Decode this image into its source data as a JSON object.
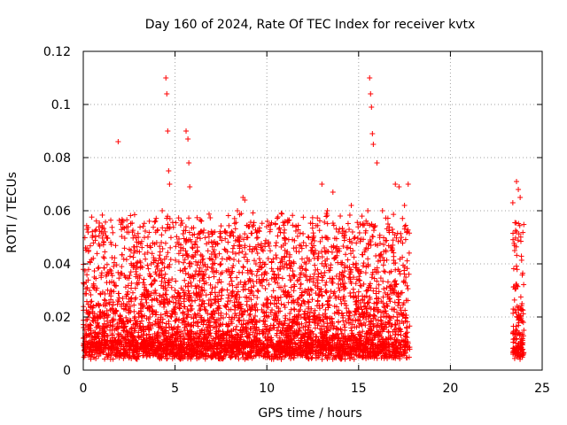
{
  "chart_data": {
    "type": "scatter",
    "title": "Day 160 of 2024, Rate Of TEC Index for receiver kvtx",
    "xlabel": "GPS time / hours",
    "ylabel": "ROTI / TECUs",
    "xlim": [
      0,
      25
    ],
    "ylim": [
      0,
      0.12
    ],
    "x_ticks": [
      0,
      5,
      10,
      15,
      20,
      25
    ],
    "x_tick_labels": [
      "0",
      "5",
      "10",
      "15",
      "20",
      "25"
    ],
    "y_ticks": [
      0,
      0.02,
      0.04,
      0.06,
      0.08,
      0.1,
      0.12
    ],
    "y_tick_labels": [
      "0",
      "0.02",
      "0.04",
      "0.06",
      "0.08",
      "0.1",
      "0.12"
    ],
    "grid": true,
    "marker": "+",
    "color": "#ff0000",
    "coverage_hours": [
      [
        0.0,
        17.8
      ],
      [
        23.4,
        24.0
      ]
    ],
    "series": [
      {
        "x": [
          0.0,
          0.3,
          0.6,
          1.0,
          1.1,
          1.5,
          1.9,
          2.2,
          2.6,
          3.0,
          3.3,
          3.7,
          4.0,
          4.3,
          4.5,
          4.55,
          4.6,
          4.65,
          4.7,
          4.8,
          5.0,
          5.3,
          5.6,
          5.7,
          5.75,
          5.8,
          5.9,
          6.2,
          6.6,
          7.0,
          7.5,
          8.0,
          8.4,
          8.7,
          8.8,
          9.0,
          9.5,
          10.0,
          10.5,
          10.8,
          11.0,
          11.5,
          12.0,
          12.4,
          12.8,
          13.0,
          13.3,
          13.6,
          14.0,
          14.3,
          14.6,
          14.8,
          15.1,
          15.5,
          15.6,
          15.65,
          15.7,
          15.75,
          15.8,
          16.0,
          16.3,
          16.6,
          17.0,
          17.2,
          17.5,
          17.7,
          23.4,
          23.5,
          23.6,
          23.7,
          23.8,
          23.9,
          24.0
        ],
        "y": [
          0.012,
          0.02,
          0.035,
          0.052,
          0.048,
          0.03,
          0.086,
          0.025,
          0.045,
          0.05,
          0.028,
          0.04,
          0.048,
          0.06,
          0.11,
          0.104,
          0.09,
          0.075,
          0.07,
          0.02,
          0.03,
          0.045,
          0.09,
          0.087,
          0.078,
          0.069,
          0.04,
          0.045,
          0.03,
          0.025,
          0.04,
          0.042,
          0.06,
          0.065,
          0.064,
          0.054,
          0.03,
          0.027,
          0.02,
          0.042,
          0.04,
          0.02,
          0.048,
          0.045,
          0.042,
          0.07,
          0.06,
          0.067,
          0.058,
          0.052,
          0.062,
          0.05,
          0.055,
          0.06,
          0.11,
          0.104,
          0.099,
          0.089,
          0.085,
          0.078,
          0.06,
          0.055,
          0.07,
          0.069,
          0.062,
          0.07,
          0.063,
          0.045,
          0.071,
          0.068,
          0.065,
          0.025,
          0.015
        ]
      }
    ]
  }
}
